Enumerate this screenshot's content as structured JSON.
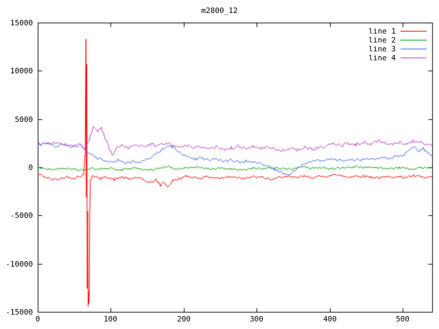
{
  "chart_data": {
    "type": "line",
    "title": "m2800_12",
    "xlabel": "",
    "ylabel": "",
    "xlim": [
      0,
      540
    ],
    "ylim": [
      -15000,
      15000
    ],
    "xticks": [
      0,
      100,
      200,
      300,
      400,
      500
    ],
    "yticks": [
      -15000,
      -10000,
      -5000,
      0,
      5000,
      10000,
      15000
    ],
    "grid": false,
    "legend_position": "top-right",
    "sampling_step": 2,
    "noise_seed": 42,
    "series": [
      {
        "name": "line 1",
        "color": "#ff0000",
        "noise_amp": 140,
        "keypoints": [
          [
            0,
            -700
          ],
          [
            10,
            -1000
          ],
          [
            20,
            -1300
          ],
          [
            30,
            -1200
          ],
          [
            40,
            -1000
          ],
          [
            50,
            -1100
          ],
          [
            58,
            -900
          ],
          [
            63,
            -800
          ],
          [
            65,
            1500
          ],
          [
            66,
            13300
          ],
          [
            66.6,
            -3000
          ],
          [
            67.2,
            10800
          ],
          [
            67.8,
            -12600
          ],
          [
            68.4,
            -4500
          ],
          [
            69,
            -14500
          ],
          [
            69.5,
            -12800
          ],
          [
            70,
            -14100
          ],
          [
            70.6,
            -13400
          ],
          [
            71.2,
            -5000
          ],
          [
            72,
            -1400
          ],
          [
            75,
            -800
          ],
          [
            85,
            -1200
          ],
          [
            95,
            -1000
          ],
          [
            105,
            -1300
          ],
          [
            115,
            -1000
          ],
          [
            125,
            -1250
          ],
          [
            135,
            -1050
          ],
          [
            145,
            -1350
          ],
          [
            155,
            -1600
          ],
          [
            162,
            -1300
          ],
          [
            168,
            -1900
          ],
          [
            173,
            -1500
          ],
          [
            178,
            -2050
          ],
          [
            185,
            -1400
          ],
          [
            195,
            -1150
          ],
          [
            205,
            -950
          ],
          [
            220,
            -1100
          ],
          [
            235,
            -1000
          ],
          [
            250,
            -1150
          ],
          [
            265,
            -950
          ],
          [
            280,
            -1100
          ],
          [
            295,
            -1000
          ],
          [
            310,
            -1100
          ],
          [
            322,
            -1300
          ],
          [
            335,
            -950
          ],
          [
            350,
            -1100
          ],
          [
            365,
            -950
          ],
          [
            380,
            -1050
          ],
          [
            395,
            -900
          ],
          [
            410,
            -800
          ],
          [
            425,
            -1000
          ],
          [
            440,
            -900
          ],
          [
            455,
            -1000
          ],
          [
            470,
            -1100
          ],
          [
            485,
            -950
          ],
          [
            500,
            -1050
          ],
          [
            515,
            -900
          ],
          [
            530,
            -1100
          ],
          [
            540,
            -1000
          ]
        ]
      },
      {
        "name": "line 2",
        "color": "#00a000",
        "noise_amp": 110,
        "keypoints": [
          [
            0,
            -100
          ],
          [
            20,
            -250
          ],
          [
            40,
            -120
          ],
          [
            60,
            -280
          ],
          [
            70,
            -120
          ],
          [
            85,
            -220
          ],
          [
            100,
            -120
          ],
          [
            115,
            -250
          ],
          [
            130,
            -120
          ],
          [
            145,
            -220
          ],
          [
            158,
            -300
          ],
          [
            170,
            -80
          ],
          [
            180,
            120
          ],
          [
            190,
            -200
          ],
          [
            205,
            -80
          ],
          [
            220,
            -20
          ],
          [
            235,
            -200
          ],
          [
            250,
            -80
          ],
          [
            265,
            -180
          ],
          [
            280,
            -250
          ],
          [
            295,
            -100
          ],
          [
            310,
            -200
          ],
          [
            322,
            -20
          ],
          [
            335,
            -120
          ],
          [
            350,
            -200
          ],
          [
            362,
            80
          ],
          [
            375,
            -120
          ],
          [
            390,
            -30
          ],
          [
            405,
            -150
          ],
          [
            420,
            -60
          ],
          [
            435,
            100
          ],
          [
            450,
            -100
          ],
          [
            465,
            -30
          ],
          [
            480,
            -120
          ],
          [
            495,
            -60
          ],
          [
            510,
            -150
          ],
          [
            525,
            -30
          ],
          [
            540,
            -100
          ]
        ]
      },
      {
        "name": "line 3",
        "color": "#4169e1",
        "noise_amp": 140,
        "keypoints": [
          [
            0,
            2300
          ],
          [
            12,
            2500
          ],
          [
            24,
            2150
          ],
          [
            36,
            2400
          ],
          [
            48,
            2100
          ],
          [
            58,
            2250
          ],
          [
            66,
            1800
          ],
          [
            72,
            1400
          ],
          [
            80,
            950
          ],
          [
            90,
            700
          ],
          [
            100,
            520
          ],
          [
            110,
            720
          ],
          [
            120,
            420
          ],
          [
            130,
            620
          ],
          [
            140,
            520
          ],
          [
            150,
            820
          ],
          [
            160,
            1250
          ],
          [
            170,
            1850
          ],
          [
            178,
            2250
          ],
          [
            186,
            2050
          ],
          [
            195,
            1500
          ],
          [
            205,
            1050
          ],
          [
            215,
            850
          ],
          [
            225,
            950
          ],
          [
            235,
            720
          ],
          [
            245,
            850
          ],
          [
            255,
            620
          ],
          [
            265,
            750
          ],
          [
            275,
            550
          ],
          [
            285,
            650
          ],
          [
            295,
            450
          ],
          [
            305,
            350
          ],
          [
            315,
            150
          ],
          [
            325,
            -250
          ],
          [
            335,
            -550
          ],
          [
            343,
            -800
          ],
          [
            352,
            -350
          ],
          [
            362,
            250
          ],
          [
            372,
            550
          ],
          [
            382,
            720
          ],
          [
            392,
            620
          ],
          [
            402,
            820
          ],
          [
            412,
            700
          ],
          [
            422,
            620
          ],
          [
            432,
            800
          ],
          [
            442,
            720
          ],
          [
            452,
            900
          ],
          [
            462,
            820
          ],
          [
            472,
            1000
          ],
          [
            482,
            920
          ],
          [
            492,
            1120
          ],
          [
            502,
            1350
          ],
          [
            510,
            1850
          ],
          [
            516,
            2100
          ],
          [
            522,
            1600
          ],
          [
            528,
            1950
          ],
          [
            534,
            1450
          ],
          [
            540,
            1300
          ]
        ]
      },
      {
        "name": "line 4",
        "color": "#c040c0",
        "noise_amp": 170,
        "keypoints": [
          [
            0,
            2500
          ],
          [
            12,
            2300
          ],
          [
            24,
            2600
          ],
          [
            36,
            2350
          ],
          [
            48,
            2200
          ],
          [
            58,
            2500
          ],
          [
            64,
            1900
          ],
          [
            70,
            2600
          ],
          [
            76,
            4300
          ],
          [
            82,
            3700
          ],
          [
            87,
            4050
          ],
          [
            92,
            3100
          ],
          [
            97,
            2100
          ],
          [
            102,
            1350
          ],
          [
            108,
            1900
          ],
          [
            115,
            2250
          ],
          [
            125,
            2000
          ],
          [
            135,
            2350
          ],
          [
            145,
            2100
          ],
          [
            155,
            2400
          ],
          [
            165,
            2200
          ],
          [
            175,
            2500
          ],
          [
            185,
            2250
          ],
          [
            195,
            2080
          ],
          [
            205,
            2300
          ],
          [
            215,
            2020
          ],
          [
            225,
            2220
          ],
          [
            235,
            1900
          ],
          [
            245,
            2120
          ],
          [
            255,
            1820
          ],
          [
            265,
            2020
          ],
          [
            275,
            2220
          ],
          [
            285,
            1920
          ],
          [
            295,
            2120
          ],
          [
            305,
            2000
          ],
          [
            315,
            2200
          ],
          [
            325,
            1880
          ],
          [
            335,
            1700
          ],
          [
            345,
            2000
          ],
          [
            355,
            1820
          ],
          [
            365,
            2100
          ],
          [
            375,
            1900
          ],
          [
            385,
            2020
          ],
          [
            395,
            2220
          ],
          [
            405,
            2420
          ],
          [
            415,
            2220
          ],
          [
            425,
            2520
          ],
          [
            435,
            2320
          ],
          [
            445,
            2620
          ],
          [
            455,
            2420
          ],
          [
            465,
            2700
          ],
          [
            475,
            2520
          ],
          [
            485,
            2320
          ],
          [
            495,
            2620
          ],
          [
            505,
            2420
          ],
          [
            515,
            2700
          ],
          [
            525,
            2520
          ],
          [
            533,
            2320
          ],
          [
            540,
            2400
          ]
        ]
      }
    ]
  }
}
